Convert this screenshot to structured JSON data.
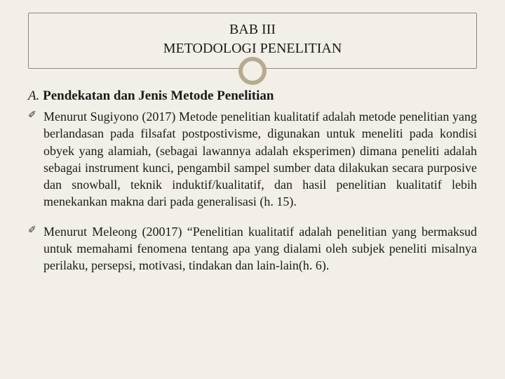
{
  "background_color": "#f2efe9",
  "ring_color": "#b7ab8f",
  "text_color": "#1a1a1a",
  "title": {
    "line1": "BAB III",
    "line2": "METODOLOGI PENELITIAN",
    "fontsize": 20
  },
  "section": {
    "lead": "A. ",
    "heading": "Pendekatan dan Jenis Metode Penelitian",
    "fontsize": 19
  },
  "bullets": [
    {
      "text": "Menurut Sugiyono (2017) Metode penelitian kualitatif adalah metode penelitian yang berlandasan pada filsafat postpostivisme, digunakan untuk meneliti pada kondisi obyek yang alamiah, (sebagai lawannya adalah eksperimen) dimana peneliti adalah sebagai instrument kunci, pengambil sampel sumber data dilakukan secara purposive dan snowball, teknik induktif/kualitatif, dan hasil penelitian kualitatif lebih menekankan makna dari pada generalisasi (h. 15).",
      "justified": true
    },
    {
      "text": "Menurut Meleong (20017) “Penelitian kualitatif adalah penelitian yang bermaksud untuk memahami fenomena tentang apa yang dialami oleh subjek peneliti misalnya perilaku, persepsi, motivasi, tindakan dan lain-lain(h. 6).",
      "justified": false
    }
  ],
  "body_fontsize": 18
}
